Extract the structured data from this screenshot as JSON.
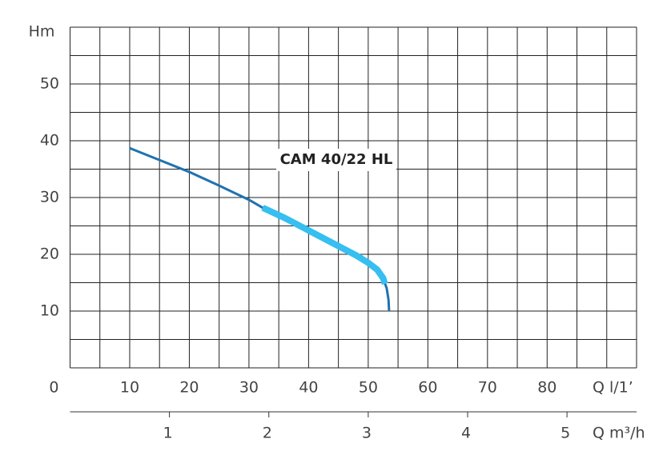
{
  "chart_data": {
    "type": "line",
    "y_label": "Hm",
    "x_label": "Q l/1’",
    "x2_label": "Q m³/h",
    "annotation": "CAM 40/22 HL",
    "xlim": [
      0,
      95
    ],
    "ylim": [
      0,
      60
    ],
    "xticks": [
      0,
      10,
      20,
      30,
      40,
      50,
      60,
      70,
      80
    ],
    "yticks": [
      10,
      20,
      30,
      40,
      50
    ],
    "xgrid": [
      0,
      5,
      10,
      15,
      20,
      25,
      30,
      35,
      40,
      45,
      50,
      55,
      60,
      65,
      70,
      75,
      80,
      85,
      90,
      95
    ],
    "ygrid": [
      0,
      5,
      10,
      15,
      20,
      25,
      30,
      35,
      40,
      45,
      50,
      55,
      60
    ],
    "x2lim": [
      0,
      5.7
    ],
    "x2ticks": [
      1,
      2,
      3,
      4,
      5
    ],
    "series": [
      {
        "color": "#1f72b0",
        "width": 3,
        "x": [
          10,
          15,
          20,
          25,
          30,
          32.3,
          36,
          40,
          44,
          48,
          50,
          51.5,
          52.5,
          53.1,
          53.4,
          53.5
        ],
        "values": [
          38.7,
          36.6,
          34.5,
          32.1,
          29.6,
          28.2,
          26.4,
          24.2,
          22,
          19.8,
          18.5,
          17.3,
          15.8,
          14,
          12,
          10
        ]
      },
      {
        "color": "#36bff0",
        "width": 8,
        "x": [
          32.3,
          36,
          40,
          44,
          48,
          50,
          51.5,
          52.5,
          52.8
        ],
        "values": [
          28.2,
          26.4,
          24.2,
          22,
          19.8,
          18.5,
          17.3,
          15.8,
          14.8
        ]
      }
    ]
  }
}
